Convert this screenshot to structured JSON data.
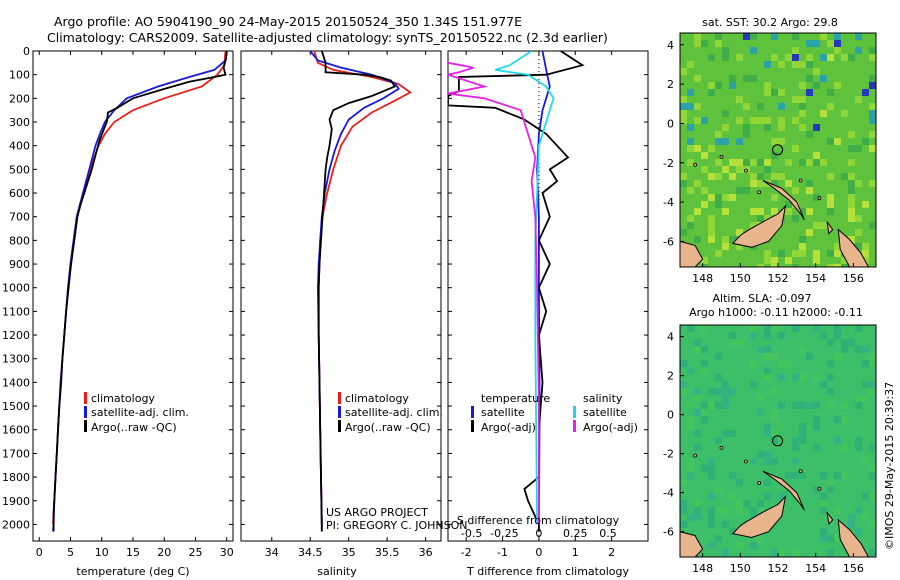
{
  "header": {
    "line1": "Argo profile: AO 5904190_90 24-May-2015 20150524_350 1.34S 151.977E",
    "line2": "Climatology: CARS2009. Satellite-adjusted climatology: synTS_20150522.nc (2.3d earlier)"
  },
  "footer": {
    "project": "US ARGO PROJECT",
    "pi": "PI: GREGORY C. JOHNSON",
    "credit": "©IMOS 29-May-2015 20:39:37"
  },
  "colors": {
    "climatology": "#e8201c",
    "satellite": "#1a1ad6",
    "argo": "#000000",
    "salinity_satellite": "#22d8e8",
    "salinity_argo": "#e820e8",
    "land": "#e8b48c",
    "ocean_sst": "#5fc23c",
    "ocean_sla": "#3cbf68"
  },
  "chart_data": [
    {
      "type": "line",
      "name": "temperature",
      "xlabel": "temperature (deg C)",
      "ylabel": "",
      "xlim": [
        -1,
        31
      ],
      "ylim": [
        2070,
        0
      ],
      "x_ticks": [
        0,
        5,
        10,
        15,
        20,
        25,
        30
      ],
      "y_ticks": [
        0,
        100,
        200,
        300,
        400,
        500,
        600,
        700,
        800,
        900,
        1000,
        1100,
        1200,
        1300,
        1400,
        1500,
        1600,
        1700,
        1800,
        1900,
        2000
      ],
      "legend": [
        "climatology",
        "satellite-adj. clim.",
        "Argo(..raw -QC)"
      ],
      "series": [
        {
          "name": "climatology",
          "color_key": "climatology",
          "points": [
            [
              29.8,
              0
            ],
            [
              29.6,
              60
            ],
            [
              28.5,
              100
            ],
            [
              26,
              150
            ],
            [
              20,
              200
            ],
            [
              15,
              250
            ],
            [
              12,
              300
            ],
            [
              10.5,
              350
            ],
            [
              9.5,
              400
            ],
            [
              8.8,
              450
            ],
            [
              8.2,
              500
            ],
            [
              7.6,
              550
            ],
            [
              7,
              600
            ],
            [
              6.5,
              650
            ],
            [
              6,
              700
            ],
            [
              5.5,
              800
            ],
            [
              5,
              900
            ],
            [
              4.6,
              1000
            ],
            [
              4.3,
              1100
            ],
            [
              4,
              1200
            ],
            [
              3.7,
              1300
            ],
            [
              3.5,
              1400
            ],
            [
              3.2,
              1500
            ],
            [
              3,
              1600
            ],
            [
              2.8,
              1700
            ],
            [
              2.6,
              1800
            ],
            [
              2.4,
              1900
            ],
            [
              2.2,
              2000
            ]
          ]
        },
        {
          "name": "satellite-adj. clim.",
          "color_key": "satellite",
          "points": [
            [
              30,
              0
            ],
            [
              29.8,
              40
            ],
            [
              28,
              80
            ],
            [
              24,
              110
            ],
            [
              19,
              150
            ],
            [
              14,
              200
            ],
            [
              12,
              250
            ],
            [
              10.5,
              300
            ],
            [
              9.7,
              350
            ],
            [
              9,
              400
            ],
            [
              8.5,
              450
            ],
            [
              8,
              500
            ],
            [
              7.5,
              550
            ],
            [
              7,
              600
            ],
            [
              6.5,
              650
            ],
            [
              6,
              700
            ],
            [
              5.5,
              800
            ],
            [
              5,
              900
            ],
            [
              4.6,
              1000
            ],
            [
              4.3,
              1100
            ],
            [
              4,
              1200
            ],
            [
              3.7,
              1300
            ],
            [
              3.4,
              1400
            ],
            [
              3.2,
              1500
            ],
            [
              3,
              1600
            ],
            [
              2.8,
              1700
            ],
            [
              2.6,
              1800
            ],
            [
              2.4,
              1900
            ],
            [
              2.3,
              2000
            ],
            [
              2.2,
              2030
            ]
          ]
        },
        {
          "name": "Argo(..raw -QC)",
          "color_key": "argo",
          "points": [
            [
              30,
              0
            ],
            [
              29.9,
              30
            ],
            [
              29.5,
              70
            ],
            [
              29.8,
              100
            ],
            [
              28,
              110
            ],
            [
              24,
              130
            ],
            [
              20,
              160
            ],
            [
              15,
              200
            ],
            [
              12.5,
              240
            ],
            [
              11,
              260
            ],
            [
              10.8,
              300
            ],
            [
              10.2,
              340
            ],
            [
              9.6,
              380
            ],
            [
              9,
              440
            ],
            [
              8.4,
              500
            ],
            [
              7.8,
              550
            ],
            [
              7.2,
              600
            ],
            [
              6.6,
              650
            ],
            [
              6.1,
              700
            ],
            [
              5.6,
              800
            ],
            [
              5.1,
              900
            ],
            [
              4.7,
              1000
            ],
            [
              4.3,
              1100
            ],
            [
              4,
              1200
            ],
            [
              3.7,
              1300
            ],
            [
              3.5,
              1400
            ],
            [
              3.2,
              1500
            ],
            [
              3,
              1600
            ],
            [
              2.8,
              1700
            ],
            [
              2.6,
              1800
            ],
            [
              2.4,
              1900
            ],
            [
              2.3,
              1950
            ],
            [
              2.3,
              2030
            ]
          ]
        }
      ]
    },
    {
      "type": "line",
      "name": "salinity",
      "xlabel": "salinity",
      "xlim": [
        33.6,
        36.2
      ],
      "ylim": [
        2070,
        0
      ],
      "x_ticks": [
        34,
        34.5,
        35,
        35.5,
        36
      ],
      "legend": [
        "climatology",
        "satellite-adj. clim.",
        "Argo(..raw -QC)"
      ],
      "series": [
        {
          "name": "climatology",
          "color_key": "climatology",
          "points": [
            [
              34.55,
              0
            ],
            [
              34.6,
              50
            ],
            [
              34.8,
              80
            ],
            [
              35.3,
              110
            ],
            [
              35.65,
              140
            ],
            [
              35.8,
              175
            ],
            [
              35.6,
              210
            ],
            [
              35.3,
              260
            ],
            [
              35.05,
              320
            ],
            [
              34.9,
              400
            ],
            [
              34.8,
              500
            ],
            [
              34.72,
              600
            ],
            [
              34.66,
              700
            ],
            [
              34.63,
              800
            ],
            [
              34.62,
              900
            ],
            [
              34.61,
              1000
            ],
            [
              34.61,
              1200
            ],
            [
              34.62,
              1400
            ],
            [
              34.63,
              1600
            ],
            [
              34.64,
              1800
            ],
            [
              34.65,
              2000
            ]
          ]
        },
        {
          "name": "satellite-adj. clim.",
          "color_key": "satellite",
          "points": [
            [
              34.5,
              0
            ],
            [
              34.6,
              40
            ],
            [
              34.9,
              70
            ],
            [
              35.3,
              100
            ],
            [
              35.6,
              135
            ],
            [
              35.65,
              160
            ],
            [
              35.45,
              200
            ],
            [
              35.2,
              240
            ],
            [
              35,
              290
            ],
            [
              34.9,
              350
            ],
            [
              34.82,
              420
            ],
            [
              34.75,
              500
            ],
            [
              34.69,
              600
            ],
            [
              34.65,
              700
            ],
            [
              34.63,
              800
            ],
            [
              34.61,
              900
            ],
            [
              34.6,
              1000
            ],
            [
              34.61,
              1200
            ],
            [
              34.62,
              1400
            ],
            [
              34.63,
              1600
            ],
            [
              34.64,
              1800
            ],
            [
              34.65,
              2000
            ],
            [
              34.65,
              2030
            ]
          ]
        },
        {
          "name": "Argo(..raw -QC)",
          "color_key": "argo",
          "points": [
            [
              34.65,
              0
            ],
            [
              34.7,
              50
            ],
            [
              34.7,
              90
            ],
            [
              35.2,
              100
            ],
            [
              35.4,
              110
            ],
            [
              35.55,
              125
            ],
            [
              35.6,
              150
            ],
            [
              35.3,
              190
            ],
            [
              35.0,
              220
            ],
            [
              34.8,
              250
            ],
            [
              34.75,
              290
            ],
            [
              34.78,
              330
            ],
            [
              34.75,
              400
            ],
            [
              34.72,
              450
            ],
            [
              34.7,
              500
            ],
            [
              34.68,
              600
            ],
            [
              34.66,
              700
            ],
            [
              34.64,
              800
            ],
            [
              34.62,
              900
            ],
            [
              34.61,
              1000
            ],
            [
              34.61,
              1200
            ],
            [
              34.62,
              1400
            ],
            [
              34.63,
              1600
            ],
            [
              34.64,
              1800
            ],
            [
              34.65,
              2000
            ],
            [
              34.65,
              2030
            ]
          ]
        }
      ]
    },
    {
      "type": "line",
      "name": "differences",
      "xlabel": "T difference from climatology",
      "top_label": "S difference from climatology",
      "xlim": [
        -2.5,
        3
      ],
      "ylim": [
        2070,
        0
      ],
      "x_ticks": [
        -2,
        -1,
        0,
        1,
        2
      ],
      "top_ticks": [
        "-0.5",
        "-0.25",
        "0",
        "0.25",
        "0.5"
      ],
      "legend_headers": [
        "temperature",
        "salinity"
      ],
      "legend": [
        "satellite",
        "Argo(-adj)",
        "satellite",
        "Argo(-adj)"
      ],
      "series": [
        {
          "name": "temperature satellite",
          "color_key": "satellite",
          "points": [
            [
              0.1,
              0
            ],
            [
              0.2,
              80
            ],
            [
              0.3,
              150
            ],
            [
              0.1,
              250
            ],
            [
              0,
              350
            ],
            [
              -0.05,
              500
            ],
            [
              0,
              700
            ],
            [
              0,
              1000
            ],
            [
              0.02,
              1500
            ],
            [
              0,
              2000
            ]
          ]
        },
        {
          "name": "temperature Argo(-adj)",
          "color_key": "argo",
          "points": [
            [
              0.6,
              0
            ],
            [
              1.2,
              60
            ],
            [
              0.2,
              100
            ],
            [
              -2.2,
              110
            ],
            [
              -2.2,
              170
            ],
            [
              -2.5,
              190
            ],
            [
              -2.5,
              230
            ],
            [
              -1.2,
              240
            ],
            [
              -0.4,
              290
            ],
            [
              0.2,
              350
            ],
            [
              0.5,
              400
            ],
            [
              0.8,
              450
            ],
            [
              0.3,
              500
            ],
            [
              0.5,
              550
            ],
            [
              0.1,
              600
            ],
            [
              0.3,
              700
            ],
            [
              0,
              800
            ],
            [
              0.3,
              900
            ],
            [
              0,
              1000
            ],
            [
              0.2,
              1100
            ],
            [
              0,
              1200
            ],
            [
              0.1,
              1400
            ],
            [
              0,
              1600
            ],
            [
              0,
              1800
            ],
            [
              -0.4,
              1850
            ],
            [
              -0.3,
              1900
            ],
            [
              0,
              2000
            ],
            [
              0,
              2030
            ]
          ]
        },
        {
          "name": "salinity satellite",
          "color_key": "salinity_satellite",
          "points": [
            [
              -0.2,
              0
            ],
            [
              -0.8,
              60
            ],
            [
              -1.2,
              80
            ],
            [
              -0.3,
              100
            ],
            [
              0.2,
              150
            ],
            [
              0.4,
              200
            ],
            [
              0.2,
              300
            ],
            [
              0,
              400
            ],
            [
              -0.05,
              600
            ],
            [
              -0.1,
              800
            ],
            [
              -0.1,
              1000
            ],
            [
              -0.1,
              1200
            ],
            [
              -0.08,
              1500
            ],
            [
              -0.05,
              2000
            ]
          ]
        },
        {
          "name": "salinity Argo(-adj)",
          "color_key": "salinity_argo",
          "points": [
            [
              -2.5,
              50
            ],
            [
              -1.8,
              70
            ],
            [
              -2.2,
              90
            ],
            [
              -2.5,
              100
            ],
            [
              -1.5,
              150
            ],
            [
              -2.5,
              180
            ],
            [
              -1.5,
              200
            ],
            [
              -0.5,
              250
            ],
            [
              -0.3,
              350
            ],
            [
              -0.1,
              450
            ],
            [
              -0.2,
              550
            ],
            [
              -0.1,
              700
            ],
            [
              -0.05,
              1000
            ],
            [
              0,
              1500
            ],
            [
              0,
              2000
            ]
          ]
        }
      ]
    },
    {
      "type": "heatmap",
      "name": "sst_map",
      "title": "sat. SST: 30.2  Argo: 29.8",
      "xlim": [
        146.8,
        157.2
      ],
      "ylim": [
        -7.3,
        4.6
      ],
      "x_ticks": [
        148,
        150,
        152,
        154,
        156
      ],
      "y_ticks": [
        4,
        2,
        0,
        -2,
        -4,
        -6
      ],
      "argo_position": {
        "lon": 151.977,
        "lat": -1.34
      }
    },
    {
      "type": "heatmap",
      "name": "sla_map",
      "title_line1": "Altim. SLA: -0.097",
      "title_line2": "Argo h1000: -0.11  h2000: -0.11",
      "xlim": [
        146.8,
        157.2
      ],
      "ylim": [
        -7.3,
        4.6
      ],
      "x_ticks": [
        148,
        150,
        152,
        154,
        156
      ],
      "y_ticks": [
        4,
        2,
        0,
        -2,
        -4,
        -6
      ],
      "argo_position": {
        "lon": 151.977,
        "lat": -1.34
      }
    }
  ]
}
